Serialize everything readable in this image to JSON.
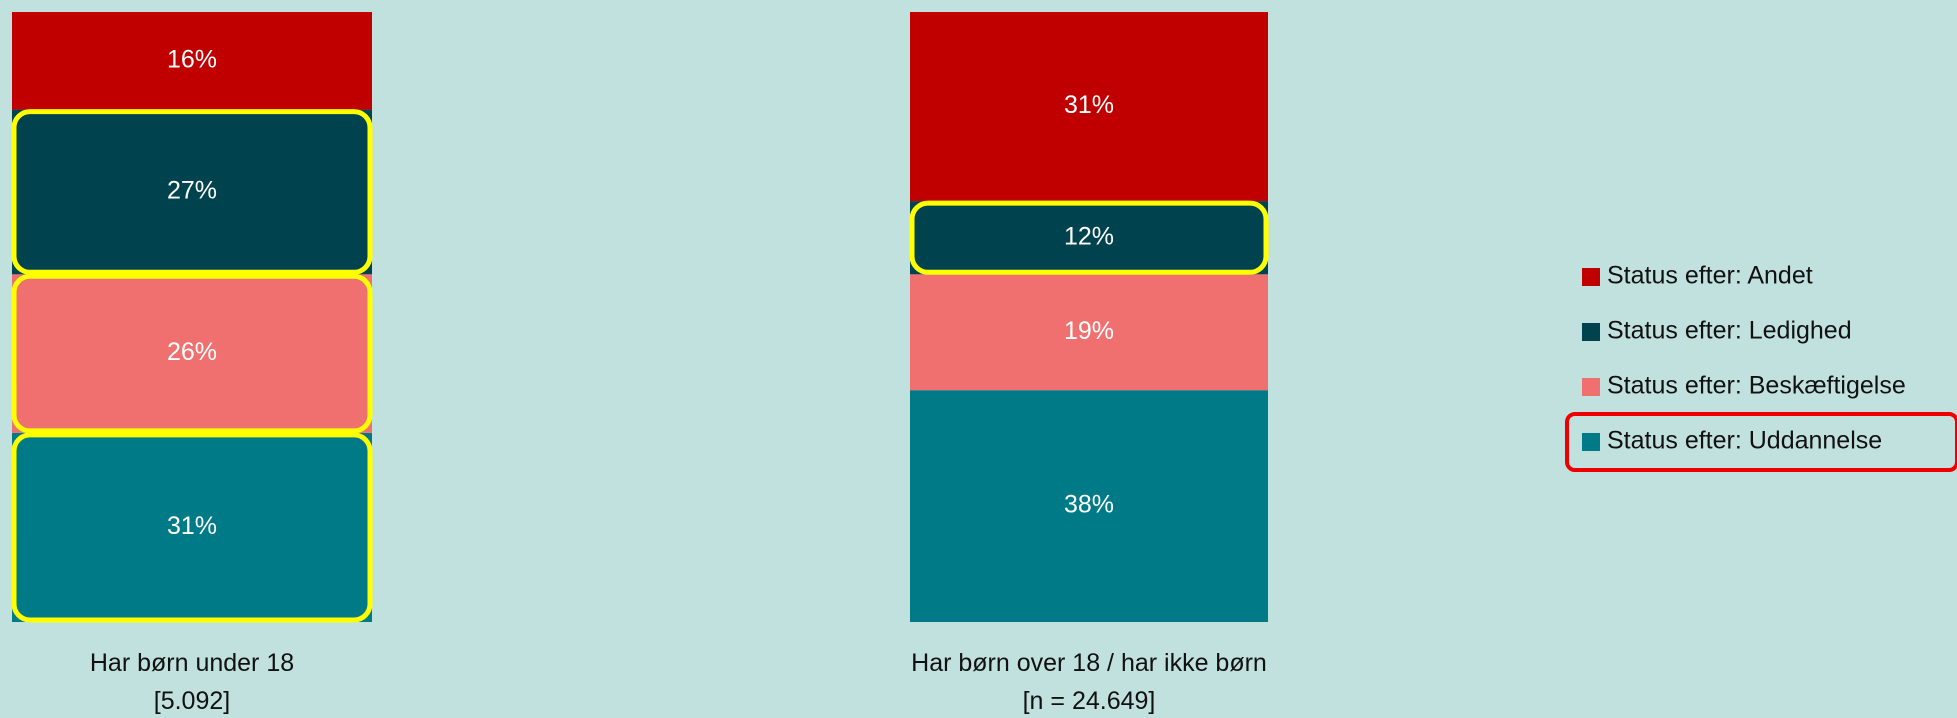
{
  "chart_data": {
    "type": "stacked_bar",
    "categories": [
      "Har børn under 18\n[5.092]",
      "Har børn over 18 / har ikke børn\n[n = 24.649]"
    ],
    "series": [
      {
        "name": "Status efter: Andet",
        "color": "#c00000",
        "values": [
          16,
          31
        ],
        "value_labels": [
          "16%",
          "31%"
        ]
      },
      {
        "name": "Status efter: Ledighed",
        "color": "#00434f",
        "values": [
          27,
          12
        ],
        "value_labels": [
          "27%",
          "12%"
        ]
      },
      {
        "name": "Status efter: Beskæftigelse",
        "color": "#f07070",
        "values": [
          26,
          19
        ],
        "value_labels": [
          "26%",
          "19%"
        ]
      },
      {
        "name": "Status efter: Uddannelse",
        "color": "#007a87",
        "values": [
          31,
          38
        ],
        "value_labels": [
          "31%",
          "38%"
        ]
      }
    ],
    "ylim": [
      0,
      100
    ]
  }
}
